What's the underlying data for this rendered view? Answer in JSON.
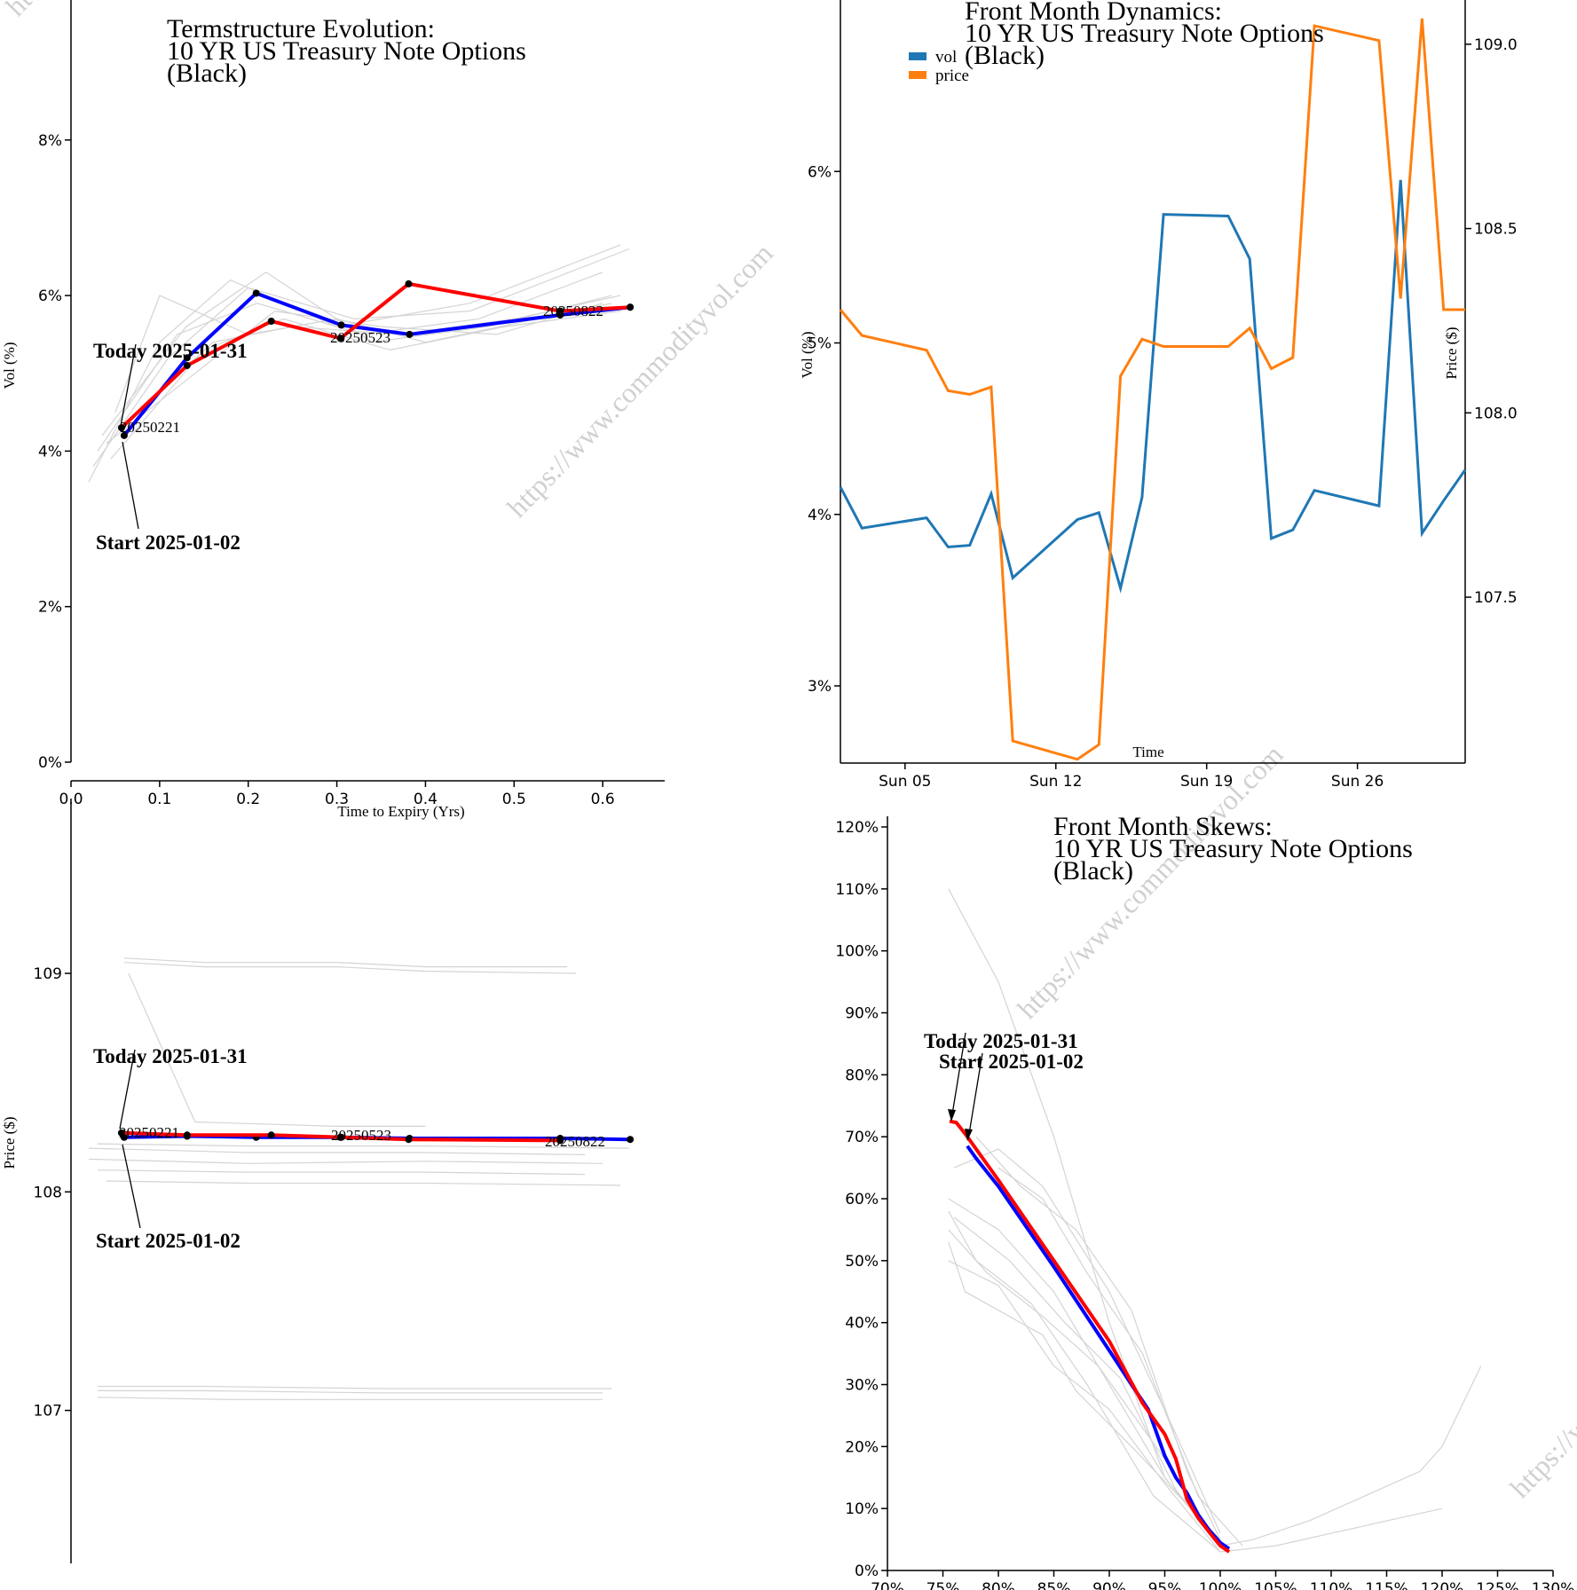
{
  "watermark": "https://www.commodityvol.com",
  "charts": {
    "term": {
      "title": [
        "Termstructure Evolution:",
        "10 YR US Treasury Note Options",
        "(Black)"
      ],
      "xlabel": "Time to Expiry (Yrs)",
      "ylabel": "Vol (%)",
      "today_label": "Today 2025-01-31",
      "start_label": "Start 2025-01-02",
      "point_labels": [
        "20250221",
        "20250523",
        "20250822"
      ]
    },
    "front": {
      "title": [
        "Front Month Dynamics:",
        "10 YR US Treasury Note Options",
        "(Black)"
      ],
      "xlabel": "Time",
      "ylabel_left": "Vol (%)",
      "ylabel_right": "Price ($)",
      "legend": [
        "vol",
        "price"
      ]
    },
    "price": {
      "ylabel": "Price ($)",
      "today_label": "Today 2025-01-31",
      "start_label": "Start 2025-01-02",
      "point_labels": [
        "20250221",
        "20250523",
        "20250822"
      ]
    },
    "skew": {
      "title": [
        "Front Month Skews:",
        "10 YR US Treasury Note Options",
        "(Black)"
      ],
      "today_label": "Today 2025-01-31",
      "start_label": "Start 2025-01-02"
    }
  },
  "chart_data": [
    {
      "type": "line",
      "title": "Termstructure Evolution: 10 YR US Treasury Note Options (Black)",
      "xlabel": "Time to Expiry (Yrs)",
      "ylabel": "Vol (%)",
      "xlim": [
        0,
        0.7
      ],
      "ylim": [
        0,
        9.8
      ],
      "xticks": [
        "0.0",
        "0.1",
        "0.2",
        "0.3",
        "0.4",
        "0.5",
        "0.6"
      ],
      "yticks": [
        "0%",
        "2%",
        "4%",
        "6%",
        "8%"
      ],
      "series": [
        {
          "name": "Today 2025-01-31",
          "color": "#ff0000",
          "x": [
            0.057,
            0.131,
            0.226,
            0.304,
            0.381,
            0.552,
            0.631
          ],
          "y": [
            4.3,
            5.1,
            5.67,
            5.45,
            6.15,
            5.8,
            5.85
          ]
        },
        {
          "name": "Start 2025-01-02",
          "color": "#0000ff",
          "x": [
            0.06,
            0.131,
            0.209,
            0.305,
            0.382,
            0.552,
            0.631
          ],
          "y": [
            4.2,
            5.2,
            6.03,
            5.62,
            5.5,
            5.75,
            5.85
          ]
        }
      ],
      "background": [
        {
          "x": [
            0.02,
            0.1,
            0.18,
            0.3,
            0.45,
            0.62
          ],
          "y": [
            3.6,
            5.4,
            6.2,
            5.6,
            5.9,
            6.65
          ]
        },
        {
          "x": [
            0.025,
            0.11,
            0.2,
            0.32,
            0.45,
            0.63
          ],
          "y": [
            3.8,
            5.2,
            6.1,
            5.7,
            5.8,
            6.6
          ]
        },
        {
          "x": [
            0.03,
            0.12,
            0.21,
            0.33,
            0.46,
            0.6
          ],
          "y": [
            4.0,
            5.5,
            5.9,
            5.5,
            5.7,
            6.3
          ]
        },
        {
          "x": [
            0.035,
            0.13,
            0.22,
            0.34,
            0.47,
            0.61
          ],
          "y": [
            4.2,
            5.6,
            6.3,
            5.4,
            5.6,
            6.0
          ]
        },
        {
          "x": [
            0.04,
            0.14,
            0.23,
            0.35,
            0.48,
            0.6
          ],
          "y": [
            4.1,
            5.0,
            5.8,
            5.6,
            5.5,
            5.9
          ]
        },
        {
          "x": [
            0.045,
            0.15,
            0.24,
            0.36,
            0.49,
            0.62
          ],
          "y": [
            3.9,
            5.3,
            5.7,
            5.3,
            5.6,
            5.8
          ]
        },
        {
          "x": [
            0.05,
            0.1,
            0.2,
            0.3,
            0.4,
            0.61
          ],
          "y": [
            4.5,
            6.0,
            5.5,
            5.7,
            5.4,
            5.9
          ]
        },
        {
          "x": [
            0.065,
            0.16,
            0.25,
            0.37,
            0.5,
            0.62
          ],
          "y": [
            4.4,
            5.4,
            5.6,
            5.5,
            5.7,
            6.0
          ]
        }
      ]
    },
    {
      "type": "line",
      "title": "Front Month Dynamics: 10 YR US Treasury Note Options (Black)",
      "xlabel": "Time",
      "ylabel": "Vol (%)",
      "y2label": "Price ($)",
      "x": [
        "2025-01-02",
        "2025-01-03",
        "2025-01-06",
        "2025-01-07",
        "2025-01-08",
        "2025-01-09",
        "2025-01-10",
        "2025-01-13",
        "2025-01-14",
        "2025-01-15",
        "2025-01-16",
        "2025-01-17",
        "2025-01-20",
        "2025-01-21",
        "2025-01-22",
        "2025-01-23",
        "2025-01-24",
        "2025-01-27",
        "2025-01-28",
        "2025-01-29",
        "2025-01-30",
        "2025-01-31"
      ],
      "xticks": [
        "Sun 05",
        "Sun 12",
        "Sun 19",
        "Sun 26"
      ],
      "yticks": [
        "3%",
        "4%",
        "5%",
        "6%"
      ],
      "y2ticks": [
        "107.5",
        "108.0",
        "108.5",
        "109.0"
      ],
      "ylim": [
        2.55,
        7.0
      ],
      "y2lim": [
        107.05,
        109.12
      ],
      "series": [
        {
          "name": "vol",
          "color": "#1f77b4",
          "axis": "left",
          "values": [
            4.16,
            3.92,
            3.98,
            3.81,
            3.82,
            4.12,
            3.63,
            3.97,
            4.01,
            3.57,
            4.1,
            5.75,
            5.74,
            5.49,
            3.86,
            3.91,
            4.14,
            4.05,
            5.95,
            3.89,
            4.08,
            4.26
          ]
        },
        {
          "name": "price",
          "color": "#ff7f0e",
          "axis": "right",
          "values": [
            108.28,
            108.21,
            108.17,
            108.06,
            108.05,
            108.07,
            107.11,
            107.06,
            107.1,
            108.1,
            108.2,
            108.18,
            108.18,
            108.23,
            108.12,
            108.15,
            109.05,
            109.01,
            108.31,
            109.07,
            108.28,
            108.28
          ]
        }
      ]
    },
    {
      "type": "line",
      "title": "",
      "ylabel": "Price ($)",
      "xlim": [
        0,
        0.7
      ],
      "ylim": [
        106.3,
        109.8
      ],
      "yticks": [
        "107",
        "108",
        "109"
      ],
      "series": [
        {
          "name": "Today 2025-01-31",
          "color": "#ff0000",
          "x": [
            0.057,
            0.131,
            0.226,
            0.304,
            0.381,
            0.552
          ],
          "y": [
            108.27,
            108.26,
            108.26,
            108.25,
            108.24,
            108.235
          ]
        },
        {
          "name": "Start 2025-01-02",
          "color": "#0000ff",
          "x": [
            0.06,
            0.131,
            0.209,
            0.305,
            0.382,
            0.552,
            0.631
          ],
          "y": [
            108.25,
            108.255,
            108.25,
            108.25,
            108.245,
            108.245,
            108.24
          ]
        }
      ],
      "background": [
        {
          "x": [
            0.06,
            0.15,
            0.3,
            0.4,
            0.56
          ],
          "y": [
            109.07,
            109.05,
            109.05,
            109.03,
            109.03
          ]
        },
        {
          "x": [
            0.06,
            0.15,
            0.3,
            0.4,
            0.57
          ],
          "y": [
            109.05,
            109.03,
            109.03,
            109.01,
            109.0
          ]
        },
        {
          "x": [
            0.065,
            0.14,
            0.3,
            0.4
          ],
          "y": [
            109.0,
            108.32,
            108.3,
            108.3
          ]
        },
        {
          "x": [
            0.02,
            0.2,
            0.4,
            0.58
          ],
          "y": [
            108.2,
            108.18,
            108.18,
            108.17
          ]
        },
        {
          "x": [
            0.02,
            0.2,
            0.4,
            0.6
          ],
          "y": [
            108.15,
            108.13,
            108.14,
            108.13
          ]
        },
        {
          "x": [
            0.03,
            0.2,
            0.4,
            0.58
          ],
          "y": [
            108.1,
            108.09,
            108.09,
            108.08
          ]
        },
        {
          "x": [
            0.04,
            0.2,
            0.4,
            0.62
          ],
          "y": [
            108.05,
            108.04,
            108.04,
            108.03
          ]
        },
        {
          "x": [
            0.03,
            0.2,
            0.4,
            0.63
          ],
          "y": [
            108.22,
            108.21,
            108.21,
            108.2
          ]
        },
        {
          "x": [
            0.03,
            0.15,
            0.35,
            0.61
          ],
          "y": [
            107.11,
            107.11,
            107.1,
            107.1
          ]
        },
        {
          "x": [
            0.03,
            0.15,
            0.35,
            0.6
          ],
          "y": [
            107.09,
            107.09,
            107.08,
            107.08
          ]
        },
        {
          "x": [
            0.03,
            0.18,
            0.35,
            0.6
          ],
          "y": [
            107.06,
            107.05,
            107.05,
            107.05
          ]
        }
      ]
    },
    {
      "type": "line",
      "title": "Front Month Skews: 10 YR US Treasury Note Options (Black)",
      "xlim": [
        70,
        130
      ],
      "ylim": [
        0,
        122
      ],
      "xticks": [
        "70%",
        "75%",
        "80%",
        "85%",
        "90%",
        "95%",
        "100%",
        "105%",
        "110%",
        "115%",
        "120%",
        "125%",
        "130%"
      ],
      "yticks": [
        "0%",
        "10%",
        "20%",
        "30%",
        "40%",
        "50%",
        "60%",
        "70%",
        "80%",
        "90%",
        "100%",
        "110%",
        "120%"
      ],
      "series": [
        {
          "name": "Today 2025-01-31",
          "color": "#ff0000",
          "x": [
            75.6,
            76.2,
            77.0,
            80.0,
            85.0,
            90.0,
            93.0,
            95.0,
            96.0,
            97.0,
            98.0,
            99.0,
            100.0,
            100.8
          ],
          "y": [
            72.5,
            72.3,
            70.5,
            63.0,
            50.0,
            37.0,
            27.0,
            22.0,
            18.0,
            11.5,
            8.5,
            6.2,
            4.0,
            3.0
          ]
        },
        {
          "name": "Start 2025-01-02",
          "color": "#0000ff",
          "x": [
            77.2,
            78.0,
            80.0,
            85.0,
            90.0,
            92.0,
            93.5,
            95.0,
            96.0,
            97.0,
            98.0,
            99.0,
            100.0,
            100.8
          ],
          "y": [
            68.5,
            66.5,
            62.0,
            49.0,
            35.5,
            30.0,
            26.0,
            18.5,
            15.0,
            12.5,
            9.0,
            6.5,
            4.5,
            3.5
          ]
        }
      ],
      "background": [
        {
          "x": [
            75.5,
            80,
            85,
            90,
            95,
            100
          ],
          "y": [
            110,
            95,
            70,
            40,
            15,
            4
          ]
        },
        {
          "x": [
            75.5,
            80,
            85,
            90,
            95,
            100
          ],
          "y": [
            60,
            55,
            45,
            30,
            15,
            4
          ]
        },
        {
          "x": [
            75.5,
            78,
            83,
            88,
            94,
            100
          ],
          "y": [
            58,
            50,
            43,
            30,
            12,
            3
          ]
        },
        {
          "x": [
            75.5,
            79,
            84,
            89,
            95,
            100
          ],
          "y": [
            55,
            48,
            41,
            33,
            18,
            4
          ]
        },
        {
          "x": [
            75.5,
            77,
            84,
            87,
            92,
            100
          ],
          "y": [
            53,
            45,
            38,
            29,
            20,
            5
          ]
        },
        {
          "x": [
            75.5,
            80,
            85,
            90,
            95,
            100
          ],
          "y": [
            50,
            46,
            33,
            26,
            14,
            3
          ]
        },
        {
          "x": [
            76,
            80,
            84,
            90,
            96,
            100
          ],
          "y": [
            65,
            68,
            62,
            45,
            22,
            6
          ]
        },
        {
          "x": [
            78,
            82,
            87,
            92,
            97,
            100
          ],
          "y": [
            70,
            62,
            55,
            42,
            16,
            5
          ]
        },
        {
          "x": [
            80,
            84,
            88,
            93,
            98,
            102
          ],
          "y": [
            65,
            60,
            48,
            35,
            12,
            4
          ]
        },
        {
          "x": [
            76,
            81,
            86,
            91,
            96,
            100
          ],
          "y": [
            57,
            50,
            40,
            31,
            13,
            4
          ]
        },
        {
          "x": [
            100,
            103,
            108,
            113,
            118,
            120,
            123.5
          ],
          "y": [
            4,
            5,
            8,
            12,
            16,
            20,
            33
          ]
        },
        {
          "x": [
            100,
            105,
            110,
            115,
            120
          ],
          "y": [
            3,
            4,
            6,
            8,
            10
          ]
        }
      ]
    }
  ]
}
